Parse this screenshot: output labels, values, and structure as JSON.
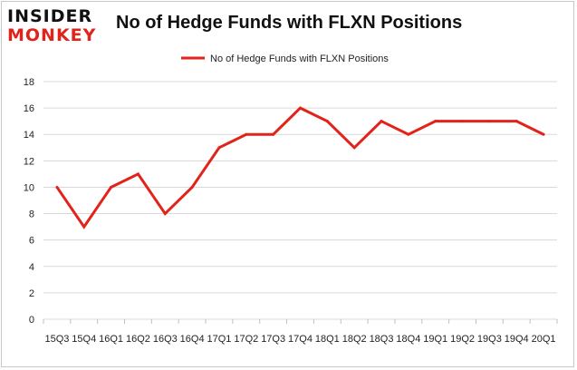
{
  "logo": {
    "line1": "INSIDER",
    "line2": "MONKEY"
  },
  "colors": {
    "series": "#e2231a",
    "grid": "#d9d9d9",
    "axis_text": "#222222"
  },
  "chart_data": {
    "type": "line",
    "title": "No of Hedge Funds with FLXN Positions",
    "xlabel": "",
    "ylabel": "",
    "categories": [
      "15Q3",
      "15Q4",
      "16Q1",
      "16Q2",
      "16Q3",
      "16Q4",
      "17Q1",
      "17Q2",
      "17Q3",
      "17Q4",
      "18Q1",
      "18Q2",
      "18Q3",
      "18Q4",
      "19Q1",
      "19Q2",
      "19Q3",
      "19Q4",
      "20Q1"
    ],
    "series": [
      {
        "name": "No of Hedge Funds with FLXN Positions",
        "values": [
          10,
          7,
          10,
          11,
          8,
          10,
          13,
          14,
          14,
          16,
          15,
          13,
          15,
          14,
          15,
          15,
          15,
          15,
          14
        ]
      }
    ],
    "ylim": [
      0,
      18
    ],
    "yticks": [
      0,
      2,
      4,
      6,
      8,
      10,
      12,
      14,
      16,
      18
    ],
    "grid": true,
    "legend": "top-center"
  }
}
